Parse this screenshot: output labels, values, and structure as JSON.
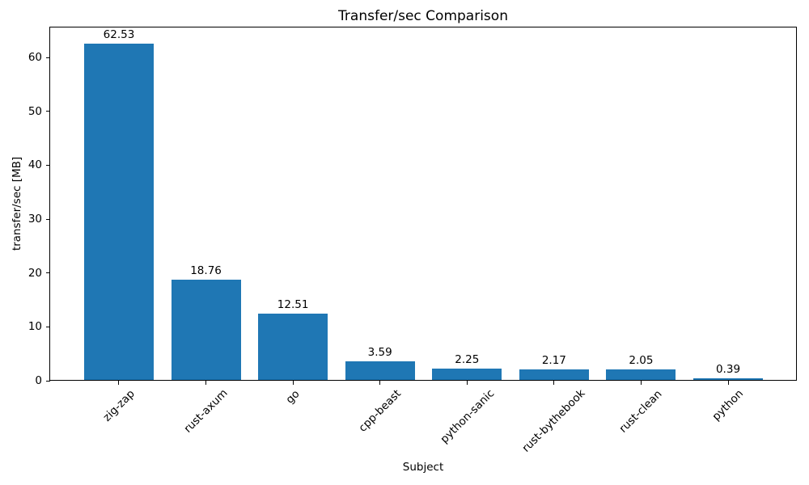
{
  "chart_data": {
    "type": "bar",
    "title": "Transfer/sec Comparison",
    "xlabel": "Subject",
    "ylabel": "transfer/sec [MB]",
    "categories": [
      "zig-zap",
      "rust-axum",
      "go",
      "cpp-beast",
      "python-sanic",
      "rust-bythebook",
      "rust-clean",
      "python"
    ],
    "values": [
      62.53,
      18.76,
      12.51,
      3.59,
      2.25,
      2.17,
      2.05,
      0.39
    ],
    "value_labels": [
      "62.53",
      "18.76",
      "12.51",
      "3.59",
      "2.25",
      "2.17",
      "2.05",
      "0.39"
    ],
    "yticks": [
      0,
      10,
      20,
      30,
      40,
      50,
      60
    ],
    "ylim": [
      0,
      65.66
    ],
    "x_tick_rotation": 45,
    "grid": false,
    "legend": null,
    "bar_color": "#1f77b4",
    "text_color": "#000000",
    "spine_color": "#000000",
    "background": "#ffffff"
  }
}
